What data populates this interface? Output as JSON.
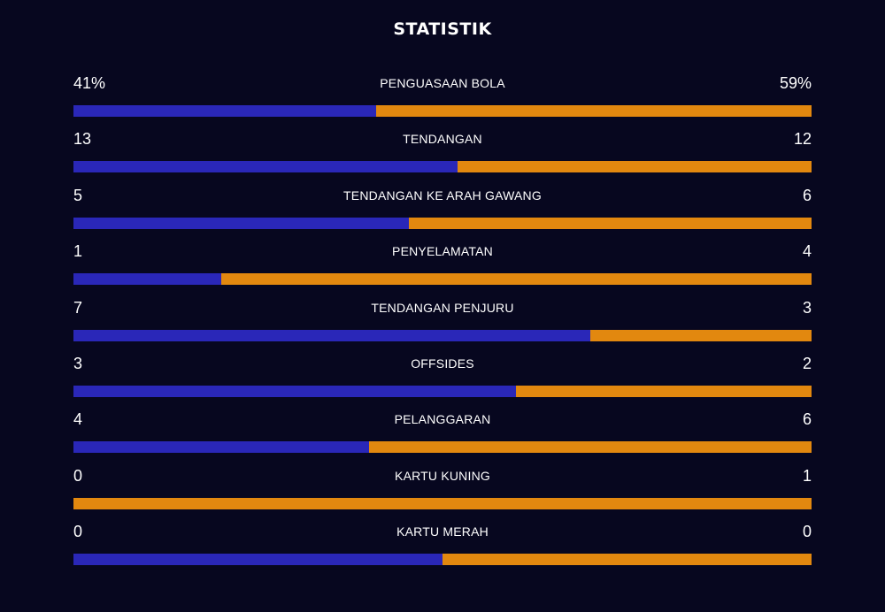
{
  "title": "STATISTIK",
  "colors": {
    "background": "#07071f",
    "home": "#2a27b8",
    "away": "#e2880f"
  },
  "stats": [
    {
      "label": "PENGUASAAN BOLA",
      "home": "41%",
      "away": "59%",
      "home_share": 0.41
    },
    {
      "label": "TENDANGAN",
      "home": "13",
      "away": "12",
      "home_share": 0.52
    },
    {
      "label": "TENDANGAN KE ARAH GAWANG",
      "home": "5",
      "away": "6",
      "home_share": 0.4545
    },
    {
      "label": "PENYELAMATAN",
      "home": "1",
      "away": "4",
      "home_share": 0.2
    },
    {
      "label": "TENDANGAN PENJURU",
      "home": "7",
      "away": "3",
      "home_share": 0.7
    },
    {
      "label": "OFFSIDES",
      "home": "3",
      "away": "2",
      "home_share": 0.6
    },
    {
      "label": "PELANGGARAN",
      "home": "4",
      "away": "6",
      "home_share": 0.4
    },
    {
      "label": "KARTU KUNING",
      "home": "0",
      "away": "1",
      "home_share": 0.0
    },
    {
      "label": "KARTU MERAH",
      "home": "0",
      "away": "0",
      "home_share": 0.5
    }
  ]
}
